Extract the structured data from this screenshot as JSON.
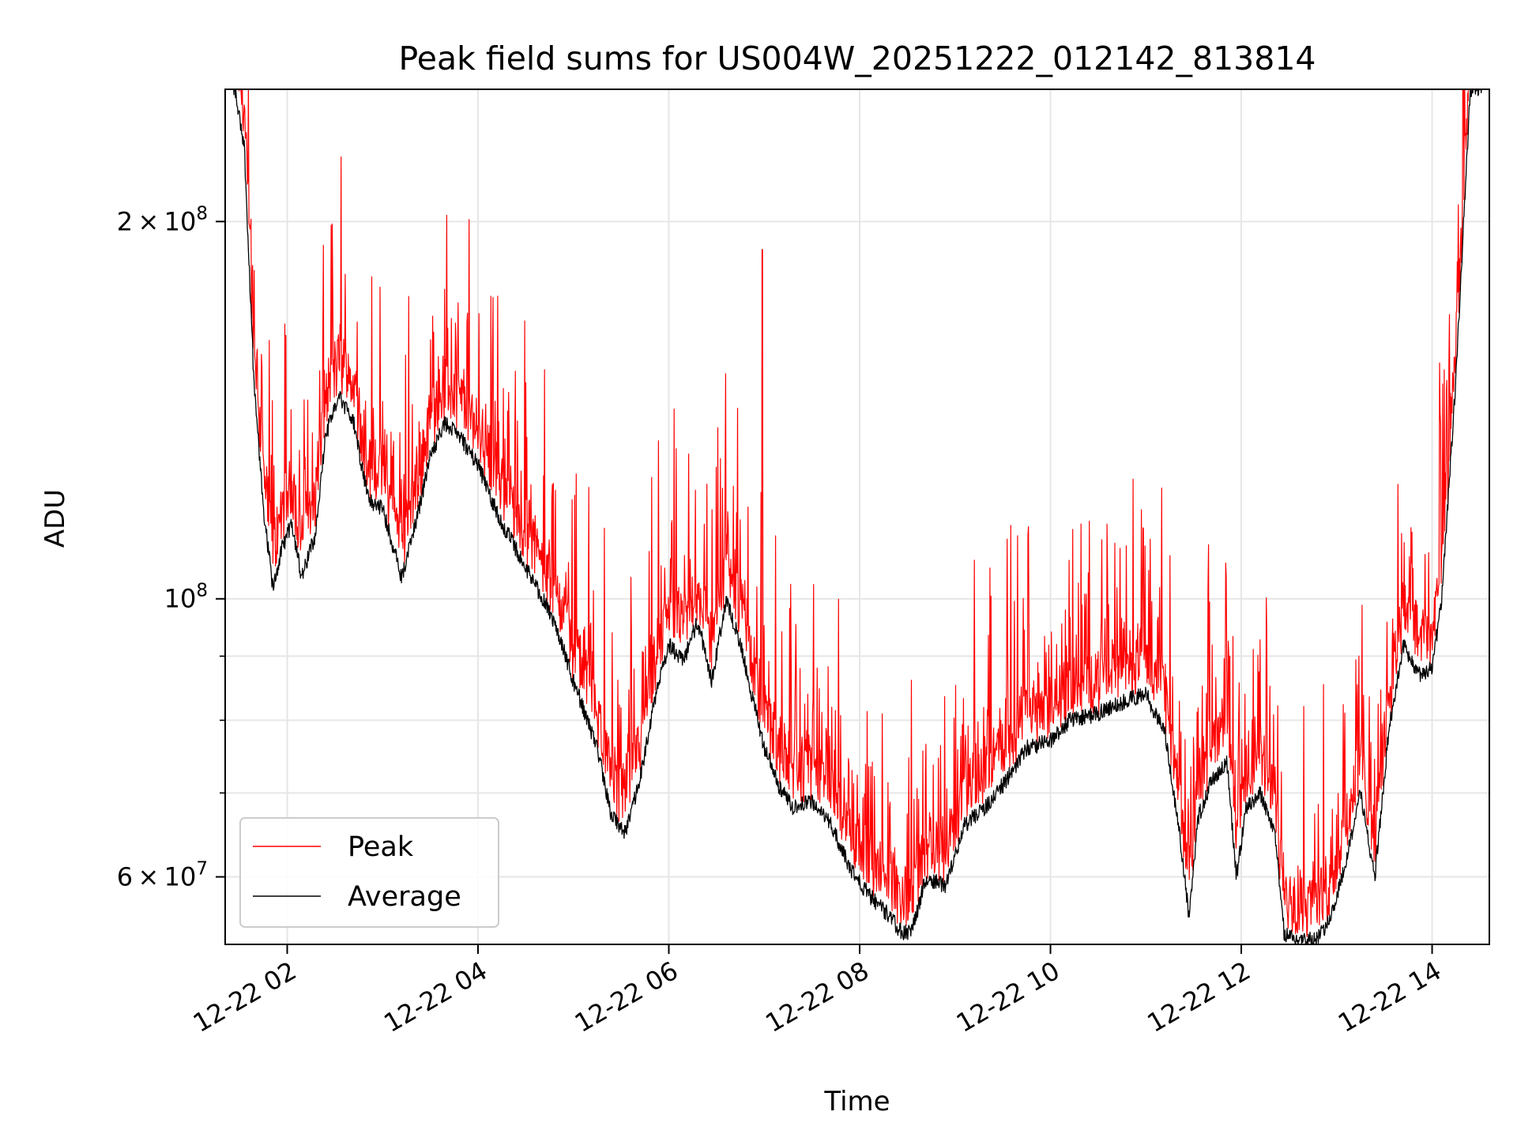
{
  "chart_data": {
    "type": "line",
    "title": "Peak field sums for US004W_20251222_012142_813814",
    "xlabel": "Time",
    "ylabel": "ADU",
    "yscale": "log",
    "ylim": [
      53000000,
      255000000
    ],
    "xlim_hours": [
      1.35,
      14.6
    ],
    "x_ticks": [
      {
        "hour": 2,
        "label": "12-22 02"
      },
      {
        "hour": 4,
        "label": "12-22 04"
      },
      {
        "hour": 6,
        "label": "12-22 06"
      },
      {
        "hour": 8,
        "label": "12-22 08"
      },
      {
        "hour": 10,
        "label": "12-22 10"
      },
      {
        "hour": 12,
        "label": "12-22 12"
      },
      {
        "hour": 14,
        "label": "12-22 14"
      }
    ],
    "y_ticks": [
      {
        "value": 200000000,
        "mantissa": "2",
        "exp": "8"
      },
      {
        "value": 100000000,
        "mantissa": "",
        "exp": "8"
      },
      {
        "value": 60000000,
        "mantissa": "6",
        "exp": "7"
      }
    ],
    "y_minor": [
      70000000,
      80000000,
      90000000
    ],
    "grid": true,
    "legend_position": "lower-left",
    "series": [
      {
        "name": "Peak",
        "color": "#ff0000"
      },
      {
        "name": "Average",
        "color": "#000000"
      }
    ],
    "average_profile": [
      [
        1.45,
        255000000
      ],
      [
        1.55,
        230000000
      ],
      [
        1.65,
        150000000
      ],
      [
        1.75,
        118000000
      ],
      [
        1.85,
        102000000
      ],
      [
        1.95,
        110000000
      ],
      [
        2.05,
        115000000
      ],
      [
        2.15,
        104000000
      ],
      [
        2.3,
        113000000
      ],
      [
        2.4,
        135000000
      ],
      [
        2.55,
        145000000
      ],
      [
        2.7,
        138000000
      ],
      [
        2.85,
        120000000
      ],
      [
        3.0,
        118000000
      ],
      [
        3.2,
        104000000
      ],
      [
        3.35,
        115000000
      ],
      [
        3.5,
        130000000
      ],
      [
        3.65,
        138000000
      ],
      [
        3.8,
        135000000
      ],
      [
        4.0,
        128000000
      ],
      [
        4.2,
        117000000
      ],
      [
        4.5,
        106000000
      ],
      [
        4.8,
        96000000
      ],
      [
        5.0,
        86000000
      ],
      [
        5.25,
        76000000
      ],
      [
        5.4,
        67000000
      ],
      [
        5.55,
        65000000
      ],
      [
        5.7,
        72000000
      ],
      [
        5.85,
        83000000
      ],
      [
        6.0,
        92000000
      ],
      [
        6.15,
        89000000
      ],
      [
        6.3,
        96000000
      ],
      [
        6.45,
        86000000
      ],
      [
        6.6,
        100000000
      ],
      [
        6.75,
        92000000
      ],
      [
        6.9,
        82000000
      ],
      [
        7.0,
        76000000
      ],
      [
        7.15,
        71000000
      ],
      [
        7.3,
        68000000
      ],
      [
        7.5,
        69000000
      ],
      [
        7.7,
        66000000
      ],
      [
        7.9,
        61000000
      ],
      [
        8.1,
        58000000
      ],
      [
        8.3,
        56000000
      ],
      [
        8.45,
        54000000
      ],
      [
        8.55,
        54500000
      ],
      [
        8.7,
        60000000
      ],
      [
        8.9,
        59000000
      ],
      [
        9.1,
        66000000
      ],
      [
        9.3,
        68000000
      ],
      [
        9.5,
        71000000
      ],
      [
        9.75,
        76000000
      ],
      [
        10.0,
        77000000
      ],
      [
        10.2,
        80000000
      ],
      [
        10.5,
        81000000
      ],
      [
        10.8,
        83000000
      ],
      [
        11.0,
        84000000
      ],
      [
        11.2,
        78000000
      ],
      [
        11.35,
        65000000
      ],
      [
        11.45,
        56000000
      ],
      [
        11.55,
        67000000
      ],
      [
        11.7,
        72000000
      ],
      [
        11.85,
        74000000
      ],
      [
        11.95,
        60000000
      ],
      [
        12.05,
        68000000
      ],
      [
        12.2,
        70000000
      ],
      [
        12.35,
        65000000
      ],
      [
        12.45,
        54000000
      ],
      [
        12.6,
        53500000
      ],
      [
        12.8,
        53500000
      ],
      [
        12.95,
        56000000
      ],
      [
        13.1,
        62000000
      ],
      [
        13.25,
        70000000
      ],
      [
        13.4,
        60000000
      ],
      [
        13.55,
        79000000
      ],
      [
        13.7,
        92000000
      ],
      [
        13.85,
        87000000
      ],
      [
        14.0,
        88000000
      ],
      [
        14.1,
        100000000
      ],
      [
        14.25,
        150000000
      ],
      [
        14.4,
        255000000
      ],
      [
        14.55,
        255000000
      ]
    ]
  }
}
